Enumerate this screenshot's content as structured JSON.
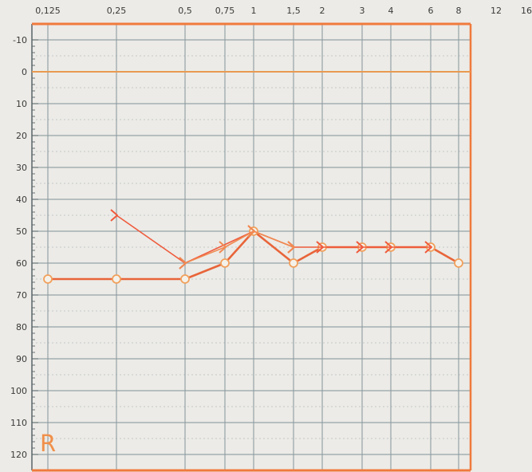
{
  "chart_data": {
    "type": "line",
    "title": "",
    "ear_label": "R",
    "x_ticks": [
      "0,125",
      "0,25",
      "0,5",
      "0,75",
      "1",
      "1,5",
      "2",
      "3",
      "4",
      "6",
      "8",
      "12",
      "16"
    ],
    "x_values": [
      0.125,
      0.25,
      0.5,
      0.75,
      1,
      1.5,
      2,
      3,
      4,
      6,
      8,
      12,
      16
    ],
    "x_scale": "log",
    "y_ticks": [
      -10,
      0,
      10,
      20,
      30,
      40,
      50,
      60,
      70,
      80,
      90,
      100,
      110,
      120
    ],
    "ylim": [
      -10,
      120
    ],
    "y_inverted": true,
    "grid": true,
    "series": [
      {
        "marker": "circle",
        "line_color": "#e8653a",
        "marker_color": "#f2a05c",
        "x": [
          0.125,
          0.25,
          0.5,
          0.75,
          1,
          1.5,
          2,
          3,
          4,
          6,
          8
        ],
        "y": [
          65,
          65,
          65,
          60,
          50,
          60,
          55,
          55,
          55,
          55,
          60
        ]
      },
      {
        "marker": "bracket",
        "line_color": "#ef5a3c",
        "marker_color": "#ef5a3c",
        "x": [
          0.25,
          0.5,
          1,
          1.5,
          2,
          3,
          4,
          6
        ],
        "y": [
          45,
          60,
          50,
          55,
          55,
          55,
          55,
          55
        ]
      },
      {
        "marker": "bracket",
        "line_color": "#f08a52",
        "marker_color": "#f08a52",
        "x": [
          0.5,
          0.75,
          1,
          1.5
        ],
        "y": [
          60,
          55,
          50,
          55
        ]
      }
    ],
    "colors": {
      "frame": "#f07a3c",
      "zero_line": "#e89a50",
      "grid": "#8d9ba1",
      "axis": "#5a6468",
      "background": "#ecebe7",
      "ear_label": "#f0904a"
    }
  }
}
